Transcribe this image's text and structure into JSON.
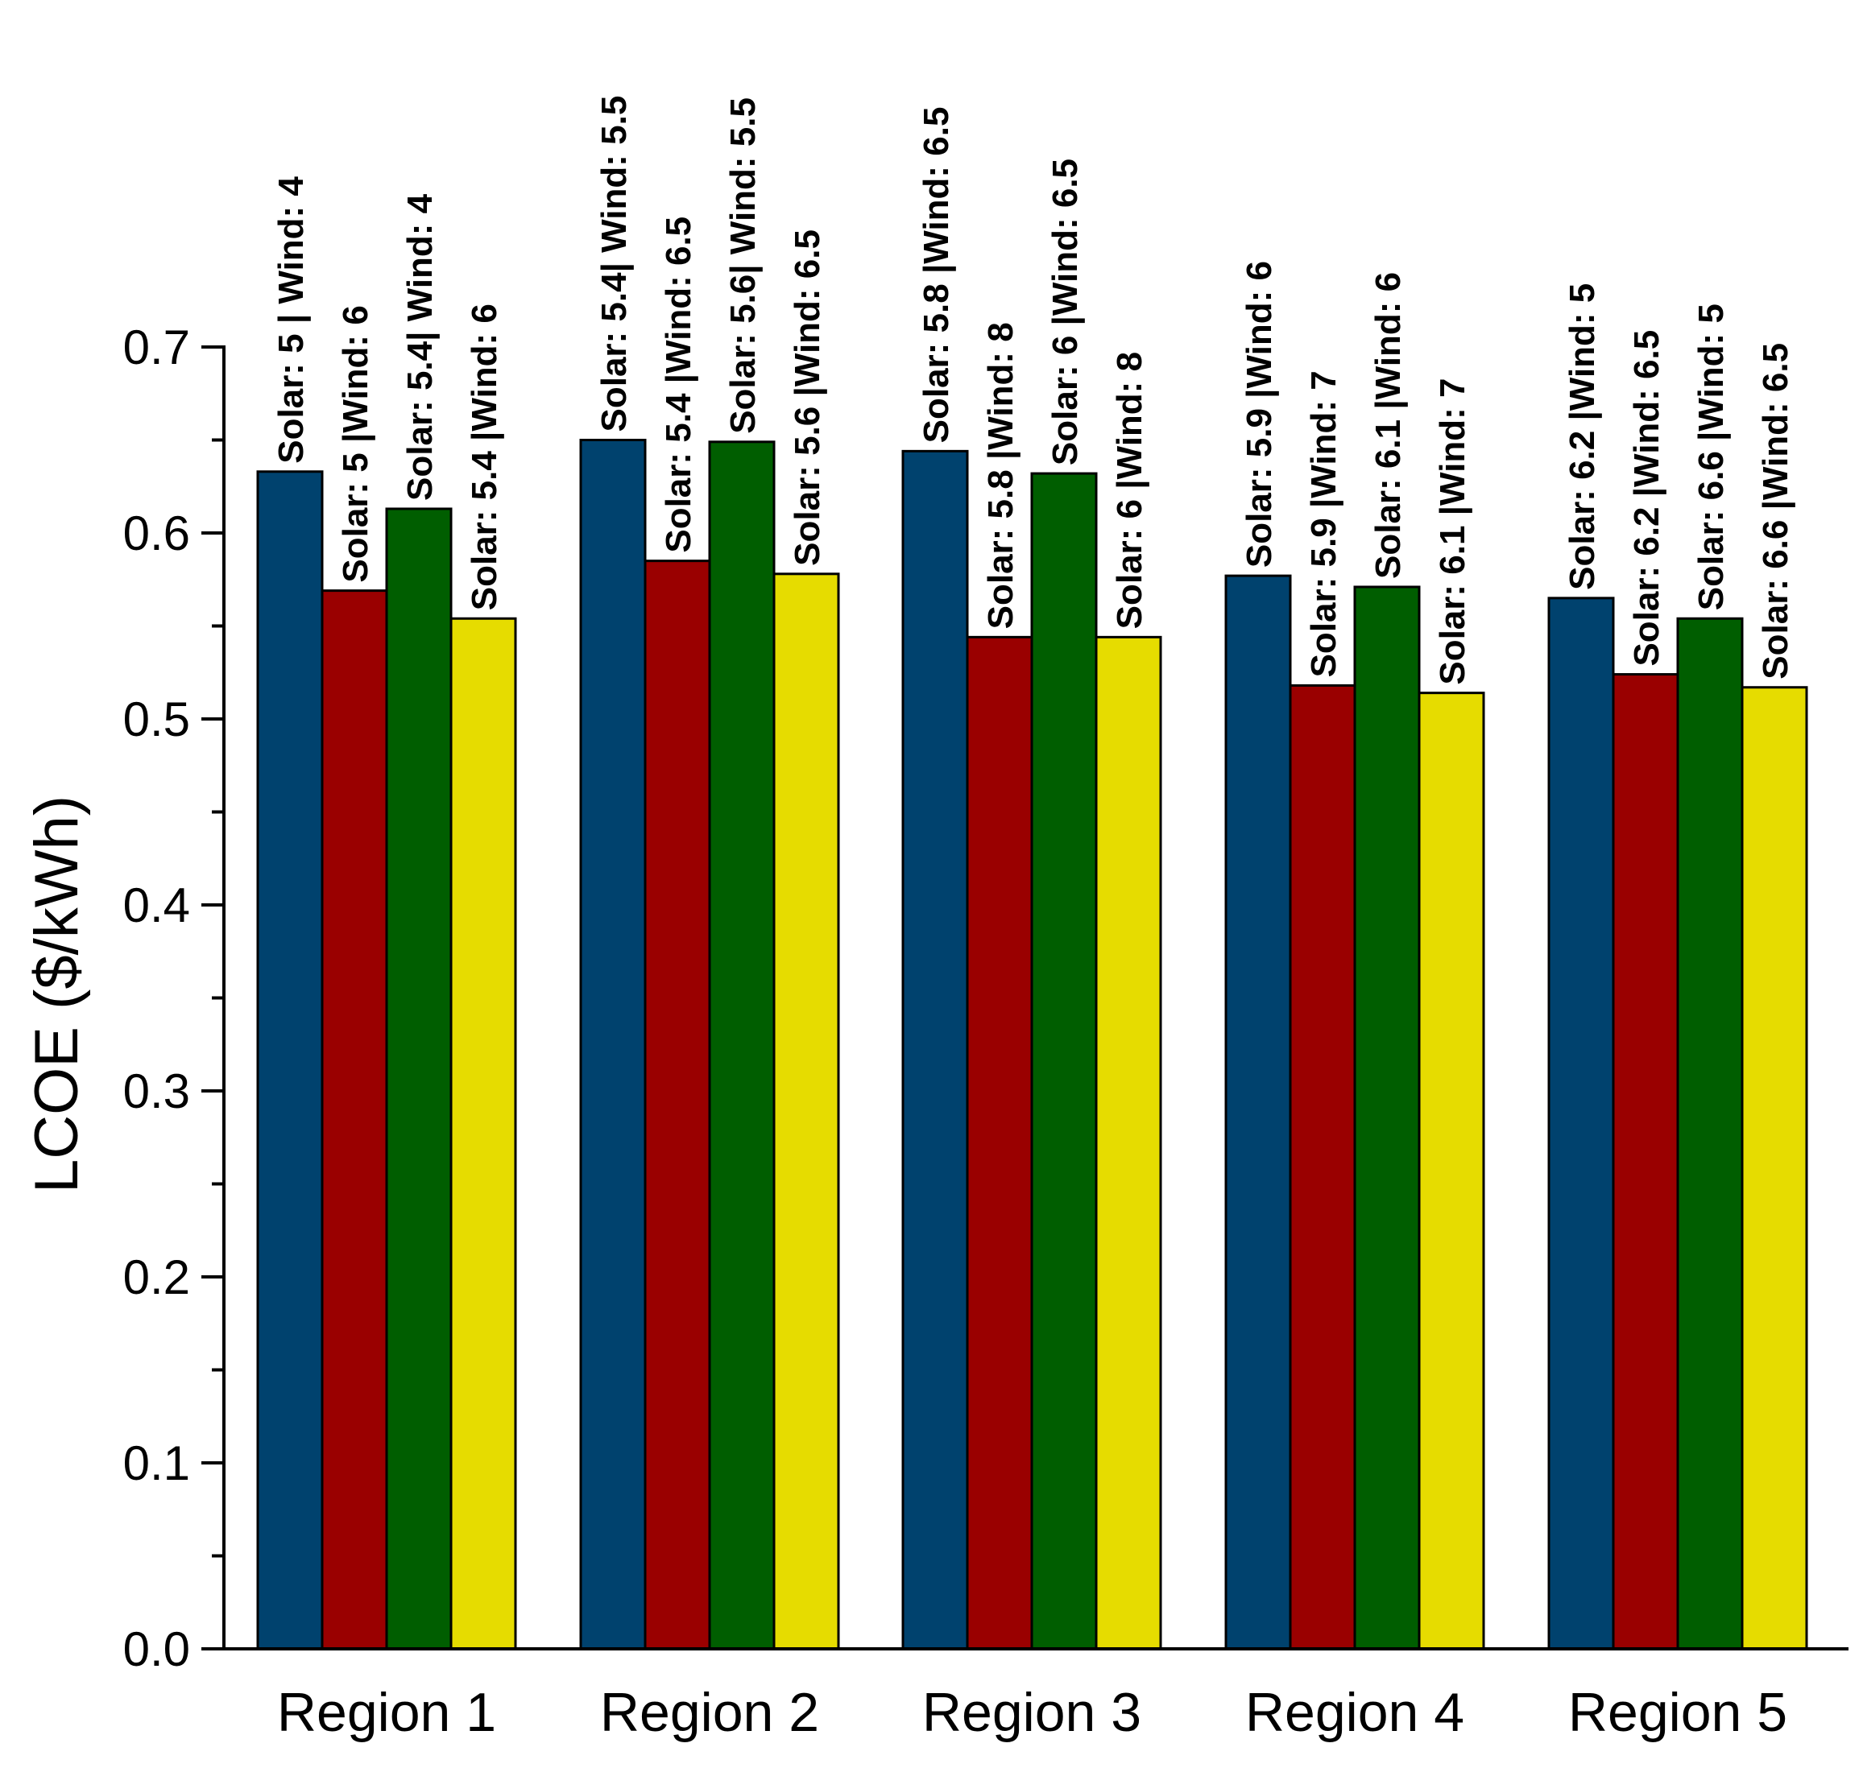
{
  "chart_data": {
    "type": "bar",
    "title": "",
    "xlabel": "",
    "ylabel": "LCOE ($/kWh)",
    "ylim": [
      0,
      0.7
    ],
    "yticks": [
      "0.0",
      "0.1",
      "0.2",
      "0.3",
      "0.4",
      "0.5",
      "0.6",
      "0.7"
    ],
    "grid": false,
    "categories": [
      "Region 1",
      "Region 2",
      "Region 3",
      "Region 4",
      "Region 5"
    ],
    "series": [
      {
        "color": "#00426e",
        "values": [
          0.633,
          0.65,
          0.644,
          0.577,
          0.565
        ],
        "labels": [
          "Solar: 5 | Wind: 4",
          "Solar: 5.4| Wind: 5.5",
          "Solar: 5.8 |Wind: 6.5",
          "Solar: 5.9 |Wind: 6",
          "Solar: 6.2 |Wind: 5"
        ]
      },
      {
        "color": "#9a0000",
        "values": [
          0.569,
          0.585,
          0.544,
          0.518,
          0.524
        ],
        "labels": [
          "Solar: 5 |Wind: 6",
          "Solar: 5.4 |Wind: 6.5",
          "Solar: 5.8 |Wind: 8",
          "Solar: 5.9 |Wind: 7",
          "Solar: 6.2 |Wind: 6.5"
        ]
      },
      {
        "color": "#005e00",
        "values": [
          0.613,
          0.649,
          0.632,
          0.571,
          0.554
        ],
        "labels": [
          "Solar: 5.4| Wind: 4",
          "Solar: 5.6| Wind: 5.5",
          "Solar: 6 |Wind: 6.5",
          "Solar: 6.1 |Wind: 6",
          "Solar: 6.6 |Wind: 5"
        ]
      },
      {
        "color": "#e6dc00",
        "values": [
          0.554,
          0.578,
          0.544,
          0.514,
          0.517
        ],
        "labels": [
          "Solar: 5.4 |Wind: 6",
          "Solar: 5.6 |Wind: 6.5",
          "Solar: 6 |Wind: 8",
          "Solar: 6.1 |Wind: 7",
          "Solar: 6.6 |Wind: 6.5"
        ]
      }
    ]
  }
}
